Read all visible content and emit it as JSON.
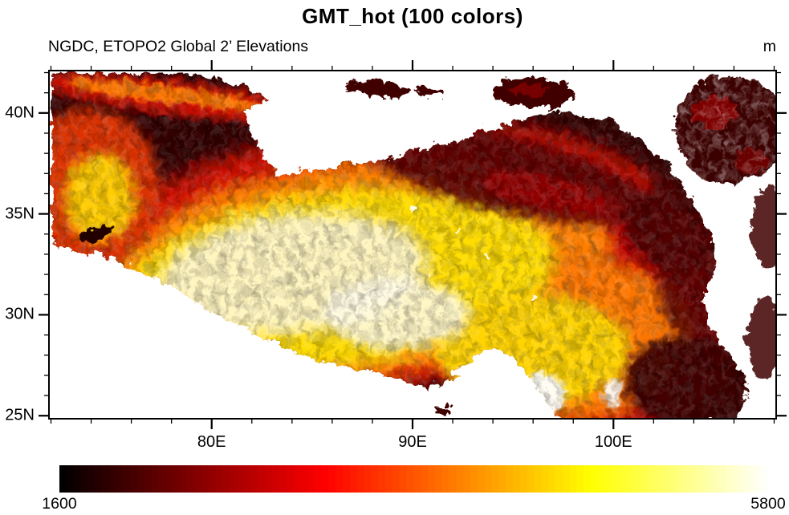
{
  "chart_data": {
    "type": "heatmap",
    "title": "GMT_hot (100 colors)",
    "subtitle": "NGDC, ETOPO2 Global 2’ Elevations",
    "units": "m",
    "colormap": {
      "name": "GMT_hot",
      "n_colors": 100,
      "ramp": [
        [
          0,
          [
            0,
            0,
            0
          ]
        ],
        [
          0.375,
          [
            255,
            0,
            0
          ]
        ],
        [
          0.75,
          [
            255,
            255,
            0
          ]
        ],
        [
          1,
          [
            255,
            255,
            255
          ]
        ]
      ]
    },
    "colorbar": {
      "min_label": "1600",
      "max_label": "5800"
    },
    "x_axis": {
      "min": 71.9,
      "max": 108.1,
      "minor_step": 2,
      "major_ticks": [
        {
          "value": 80,
          "label": "80E"
        },
        {
          "value": 90,
          "label": "90E"
        },
        {
          "value": 100,
          "label": "100E"
        }
      ]
    },
    "y_axis": {
      "min": 24.85,
      "max": 42.1,
      "minor_step": 1,
      "major_ticks": [
        {
          "value": 25,
          "label": "25N"
        },
        {
          "value": 30,
          "label": "30N"
        },
        {
          "value": 35,
          "label": "35N"
        },
        {
          "value": 40,
          "label": "40N"
        }
      ]
    }
  }
}
